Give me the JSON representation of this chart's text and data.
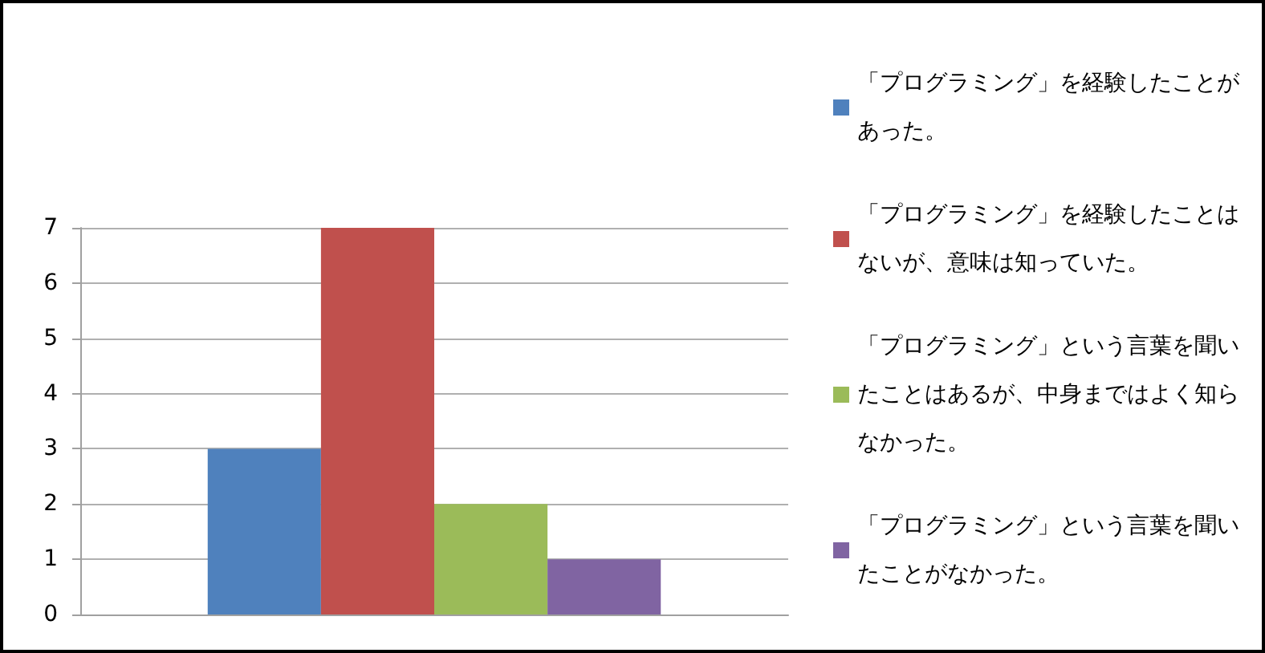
{
  "chart_data": {
    "type": "bar",
    "categories": [
      null
    ],
    "series": [
      {
        "name": "「プログラミング」を経験したことがあった。",
        "color": "#4f81bd",
        "values": [
          3
        ]
      },
      {
        "name": "「プログラミング」を経験したことはないが、意味は知っていた。",
        "color": "#c0504d",
        "values": [
          7
        ]
      },
      {
        "name": "「プログラミング」という言葉を聞いたことはあるが、中身まではよく知らなかった。",
        "color": "#9bbb59",
        "values": [
          2
        ]
      },
      {
        "name": "「プログラミング」という言葉を聞いたことがなかった。",
        "color": "#8064a2",
        "values": [
          1
        ]
      }
    ],
    "ylim": [
      0,
      7
    ],
    "yticks": [
      0,
      1,
      2,
      3,
      4,
      5,
      6,
      7
    ],
    "grid": "y",
    "legend": "right"
  }
}
